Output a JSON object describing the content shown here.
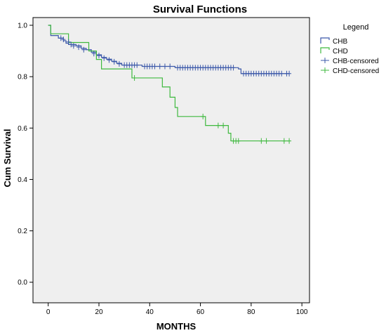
{
  "chart_data": {
    "type": "line",
    "title": "Survival Functions",
    "xlabel": "MONTHS",
    "ylabel": "Cum Survival",
    "xlim": [
      -6,
      103
    ],
    "ylim": [
      -0.08,
      1.03
    ],
    "xticks": [
      "0",
      "20",
      "40",
      "60",
      "80",
      "100"
    ],
    "yticks": [
      "0.0",
      "0.2",
      "0.4",
      "0.6",
      "0.8",
      "1.0"
    ],
    "grid": false,
    "legend_position": "right",
    "legend_title": "Legend",
    "colors": {
      "plot_background": "#efefef",
      "CHB": "#3b58a9",
      "CHD": "#3fb93f"
    },
    "series": [
      {
        "name": "CHB",
        "step": [
          [
            0,
            1.0
          ],
          [
            1,
            0.96
          ],
          [
            4,
            0.95
          ],
          [
            6,
            0.94
          ],
          [
            7,
            0.93
          ],
          [
            8,
            0.925
          ],
          [
            11,
            0.92
          ],
          [
            13,
            0.91
          ],
          [
            15,
            0.905
          ],
          [
            17,
            0.895
          ],
          [
            19,
            0.885
          ],
          [
            21,
            0.875
          ],
          [
            23,
            0.868
          ],
          [
            25,
            0.86
          ],
          [
            27,
            0.852
          ],
          [
            29,
            0.845
          ],
          [
            37,
            0.84
          ],
          [
            50,
            0.835
          ],
          [
            75,
            0.83
          ],
          [
            76,
            0.812
          ],
          [
            95,
            0.812
          ]
        ]
      },
      {
        "name": "CHD",
        "step": [
          [
            0,
            1.0
          ],
          [
            1,
            0.967
          ],
          [
            8,
            0.933
          ],
          [
            16,
            0.9
          ],
          [
            19,
            0.867
          ],
          [
            21,
            0.83
          ],
          [
            33,
            0.795
          ],
          [
            45,
            0.76
          ],
          [
            48,
            0.72
          ],
          [
            50,
            0.68
          ],
          [
            51,
            0.645
          ],
          [
            62,
            0.61
          ],
          [
            71,
            0.58
          ],
          [
            72,
            0.55
          ],
          [
            95,
            0.55
          ]
        ]
      },
      {
        "name": "CHB-censored",
        "points": [
          [
            5,
            0.95
          ],
          [
            6,
            0.945
          ],
          [
            8,
            0.935
          ],
          [
            9,
            0.925
          ],
          [
            10,
            0.92
          ],
          [
            12,
            0.915
          ],
          [
            14,
            0.905
          ],
          [
            18,
            0.89
          ],
          [
            20,
            0.882
          ],
          [
            22,
            0.872
          ],
          [
            24,
            0.865
          ],
          [
            26,
            0.858
          ],
          [
            28,
            0.85
          ],
          [
            30,
            0.845
          ],
          [
            31,
            0.845
          ],
          [
            32,
            0.845
          ],
          [
            33,
            0.845
          ],
          [
            34,
            0.845
          ],
          [
            35,
            0.845
          ],
          [
            38,
            0.84
          ],
          [
            39,
            0.84
          ],
          [
            40,
            0.84
          ],
          [
            41,
            0.84
          ],
          [
            42,
            0.84
          ],
          [
            44,
            0.84
          ],
          [
            46,
            0.84
          ],
          [
            48,
            0.84
          ],
          [
            51,
            0.835
          ],
          [
            52,
            0.835
          ],
          [
            53,
            0.835
          ],
          [
            54,
            0.835
          ],
          [
            55,
            0.835
          ],
          [
            56,
            0.835
          ],
          [
            57,
            0.835
          ],
          [
            58,
            0.835
          ],
          [
            59,
            0.835
          ],
          [
            60,
            0.835
          ],
          [
            61,
            0.835
          ],
          [
            62,
            0.835
          ],
          [
            63,
            0.835
          ],
          [
            64,
            0.835
          ],
          [
            65,
            0.835
          ],
          [
            66,
            0.835
          ],
          [
            67,
            0.835
          ],
          [
            68,
            0.835
          ],
          [
            69,
            0.835
          ],
          [
            70,
            0.835
          ],
          [
            71,
            0.835
          ],
          [
            72,
            0.835
          ],
          [
            73,
            0.835
          ],
          [
            77,
            0.812
          ],
          [
            78,
            0.812
          ],
          [
            79,
            0.812
          ],
          [
            80,
            0.812
          ],
          [
            81,
            0.812
          ],
          [
            82,
            0.812
          ],
          [
            83,
            0.812
          ],
          [
            84,
            0.812
          ],
          [
            85,
            0.812
          ],
          [
            86,
            0.812
          ],
          [
            87,
            0.812
          ],
          [
            88,
            0.812
          ],
          [
            89,
            0.812
          ],
          [
            90,
            0.812
          ],
          [
            91,
            0.812
          ],
          [
            92,
            0.812
          ],
          [
            94,
            0.812
          ],
          [
            95,
            0.812
          ]
        ]
      },
      {
        "name": "CHD-censored",
        "points": [
          [
            34,
            0.795
          ],
          [
            61,
            0.645
          ],
          [
            67,
            0.61
          ],
          [
            69,
            0.61
          ],
          [
            73,
            0.55
          ],
          [
            74,
            0.55
          ],
          [
            75,
            0.55
          ],
          [
            84,
            0.55
          ],
          [
            86,
            0.55
          ],
          [
            93,
            0.55
          ],
          [
            95,
            0.55
          ]
        ]
      }
    ]
  }
}
